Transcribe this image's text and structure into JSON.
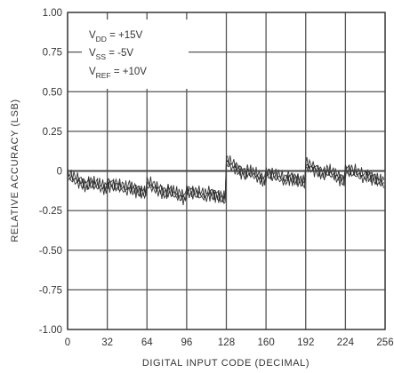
{
  "chart_data": {
    "type": "line",
    "xlabel": "DIGITAL INPUT CODE (DECIMAL)",
    "ylabel": "RELATIVE ACCURACY (LSB)",
    "xlim": [
      0,
      256
    ],
    "ylim": [
      -1.0,
      1.0
    ],
    "x_ticks": [
      "0",
      "32",
      "64",
      "96",
      "128",
      "160",
      "192",
      "224",
      "256"
    ],
    "y_ticks": [
      "1.00",
      "0.75",
      "0.50",
      "0.25",
      "0",
      "-0.25",
      "-0.50",
      "-0.75",
      "-1.00"
    ],
    "grid": true,
    "annotations": [
      {
        "base": "V",
        "sub": "DD",
        "rest": " = +15V"
      },
      {
        "base": "V",
        "sub": "SS",
        "rest": " = -5V"
      },
      {
        "base": "V",
        "sub": "REF",
        "rest": " = +10V"
      }
    ],
    "series": [
      {
        "x": [
          0,
          8,
          16,
          17,
          24,
          31,
          32,
          40,
          48,
          49,
          56,
          63,
          64,
          72,
          80,
          81,
          88,
          95,
          96,
          104,
          112,
          113,
          120,
          127,
          128,
          136,
          144,
          145,
          152,
          159,
          160,
          168,
          176,
          177,
          184,
          191,
          192,
          200,
          208,
          209,
          216,
          223,
          224,
          232,
          240,
          241,
          248,
          255
        ],
        "y": [
          -0.03,
          -0.06,
          -0.09,
          -0.07,
          -0.09,
          -0.11,
          -0.08,
          -0.09,
          -0.12,
          -0.1,
          -0.12,
          -0.14,
          -0.08,
          -0.11,
          -0.14,
          -0.12,
          -0.15,
          -0.17,
          -0.12,
          -0.14,
          -0.16,
          -0.14,
          -0.15,
          -0.18,
          0.06,
          0.02,
          -0.02,
          0.0,
          -0.03,
          -0.06,
          -0.01,
          -0.03,
          -0.06,
          -0.04,
          -0.05,
          -0.08,
          0.04,
          0.01,
          -0.02,
          0.0,
          -0.03,
          -0.06,
          0.01,
          -0.01,
          -0.04,
          -0.02,
          -0.05,
          -0.08
        ]
      }
    ]
  }
}
